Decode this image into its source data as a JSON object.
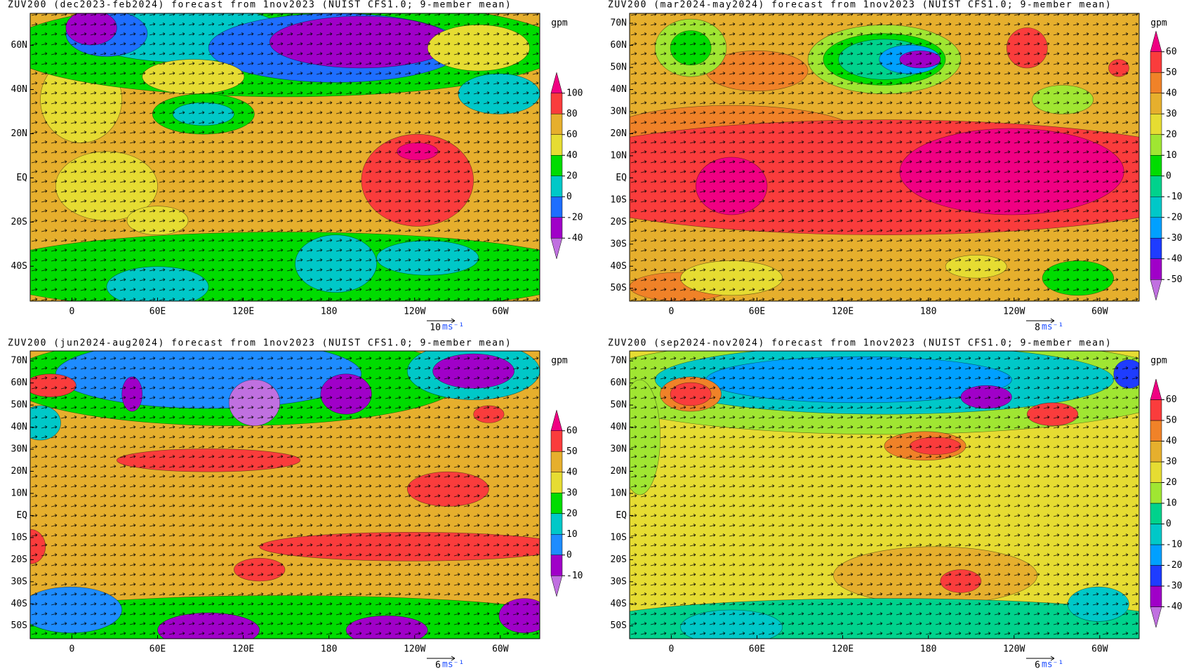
{
  "latlim": [
    -55.8,
    74.5
  ],
  "lonlim": [
    -29.2,
    327.6
  ],
  "panels": [
    {
      "title": "ZUV200 (dec2023-feb2024) forecast from 1nov2023 (NUIST CFS1.0; 9-member mean)",
      "unit": "gpm",
      "levels": [
        -40,
        -20,
        0,
        20,
        40,
        60,
        80,
        100
      ],
      "colors": [
        "#c070e0",
        "#a000c8",
        "#1e6eff",
        "#00c8c8",
        "#00dc00",
        "#e6dc32",
        "#e6af2d",
        "#fa3c3c",
        "#f00082"
      ],
      "lat_ticks": [
        {
          "value": 60,
          "label": "60N"
        },
        {
          "value": 40,
          "label": "40N"
        },
        {
          "value": 20,
          "label": "20N"
        },
        {
          "value": 0,
          "label": "EQ"
        },
        {
          "value": -20,
          "label": "20S"
        },
        {
          "value": -40,
          "label": "40S"
        }
      ],
      "lon_ticks": [
        0,
        {
          "value": 60,
          "label": "60E"
        },
        {
          "value": 120,
          "label": "120E"
        },
        180,
        {
          "value": 240,
          "label": "120W"
        },
        {
          "value": 300,
          "label": "60W"
        }
      ],
      "vector_scale": 10,
      "vector_unit": "ms⁻¹"
    },
    {
      "title": "ZUV200 (mar2024-may2024) forecast from 1nov2023 (NUIST CFS1.0; 9-member mean)",
      "unit": "gpm",
      "levels": [
        -50,
        -40,
        -30,
        -20,
        -10,
        0,
        10,
        20,
        30,
        40,
        50,
        60
      ],
      "colors": [
        "#c070e0",
        "#a000c8",
        "#1e3cff",
        "#00a0ff",
        "#00c8c8",
        "#00d28c",
        "#00dc00",
        "#a0e632",
        "#e6dc32",
        "#e6af2d",
        "#f08228",
        "#fa3c3c",
        "#f00082"
      ],
      "lat_ticks": [
        {
          "value": 70,
          "label": "70N"
        },
        {
          "value": 60,
          "label": "60N"
        },
        {
          "value": 50,
          "label": "50N"
        },
        {
          "value": 40,
          "label": "40N"
        },
        {
          "value": 30,
          "label": "30N"
        },
        {
          "value": 20,
          "label": "20N"
        },
        {
          "value": 10,
          "label": "10N"
        },
        {
          "value": 0,
          "label": "EQ"
        },
        {
          "value": -10,
          "label": "10S"
        },
        {
          "value": -20,
          "label": "20S"
        },
        {
          "value": -30,
          "label": "30S"
        },
        {
          "value": -40,
          "label": "40S"
        },
        {
          "value": -50,
          "label": "50S"
        }
      ],
      "lon_ticks": [
        0,
        {
          "value": 60,
          "label": "60E"
        },
        {
          "value": 120,
          "label": "120E"
        },
        180,
        {
          "value": 240,
          "label": "120W"
        },
        {
          "value": 300,
          "label": "60W"
        }
      ],
      "vector_scale": 8,
      "vector_unit": "ms⁻¹"
    },
    {
      "title": "ZUV200 (jun2024-aug2024) forecast from 1nov2023 (NUIST CFS1.0; 9-member mean)",
      "unit": "gpm",
      "levels": [
        -10,
        0,
        10,
        20,
        30,
        40,
        50,
        60
      ],
      "colors": [
        "#c070e0",
        "#a000c8",
        "#1e8cff",
        "#00c8c8",
        "#00dc00",
        "#e6dc32",
        "#e6af2d",
        "#fa3c3c",
        "#f00082"
      ],
      "lat_ticks": [
        {
          "value": 70,
          "label": "70N"
        },
        {
          "value": 60,
          "label": "60N"
        },
        {
          "value": 50,
          "label": "50N"
        },
        {
          "value": 40,
          "label": "40N"
        },
        {
          "value": 30,
          "label": "30N"
        },
        {
          "value": 20,
          "label": "20N"
        },
        {
          "value": 10,
          "label": "10N"
        },
        {
          "value": 0,
          "label": "EQ"
        },
        {
          "value": -10,
          "label": "10S"
        },
        {
          "value": -20,
          "label": "20S"
        },
        {
          "value": -30,
          "label": "30S"
        },
        {
          "value": -40,
          "label": "40S"
        },
        {
          "value": -50,
          "label": "50S"
        }
      ],
      "lon_ticks": [
        0,
        {
          "value": 60,
          "label": "60E"
        },
        {
          "value": 120,
          "label": "120E"
        },
        180,
        {
          "value": 240,
          "label": "120W"
        },
        {
          "value": 300,
          "label": "60W"
        }
      ],
      "vector_scale": 6,
      "vector_unit": "ms⁻¹"
    },
    {
      "title": "ZUV200 (sep2024-nov2024) forecast from 1nov2023 (NUIST CFS1.0; 9-member mean)",
      "unit": "gpm",
      "levels": [
        -40,
        -30,
        -20,
        -10,
        0,
        10,
        20,
        30,
        40,
        50,
        60
      ],
      "colors": [
        "#c070e0",
        "#a000c8",
        "#1e3cff",
        "#00a0ff",
        "#00c8c8",
        "#00d28c",
        "#a0e632",
        "#e6dc32",
        "#e6af2d",
        "#f08228",
        "#fa3c3c",
        "#f00082"
      ],
      "lat_ticks": [
        {
          "value": 70,
          "label": "70N"
        },
        {
          "value": 60,
          "label": "60N"
        },
        {
          "value": 50,
          "label": "50N"
        },
        {
          "value": 40,
          "label": "40N"
        },
        {
          "value": 30,
          "label": "30N"
        },
        {
          "value": 20,
          "label": "20N"
        },
        {
          "value": 10,
          "label": "10N"
        },
        {
          "value": 0,
          "label": "EQ"
        },
        {
          "value": -10,
          "label": "10S"
        },
        {
          "value": -20,
          "label": "20S"
        },
        {
          "value": -30,
          "label": "30S"
        },
        {
          "value": -40,
          "label": "40S"
        },
        {
          "value": -50,
          "label": "50S"
        }
      ],
      "lon_ticks": [
        0,
        {
          "value": 60,
          "label": "60E"
        },
        {
          "value": 120,
          "label": "120E"
        },
        180,
        {
          "value": 240,
          "label": "120W"
        },
        {
          "value": 300,
          "label": "60W"
        }
      ],
      "vector_scale": 6,
      "vector_unit": "ms⁻¹"
    }
  ]
}
